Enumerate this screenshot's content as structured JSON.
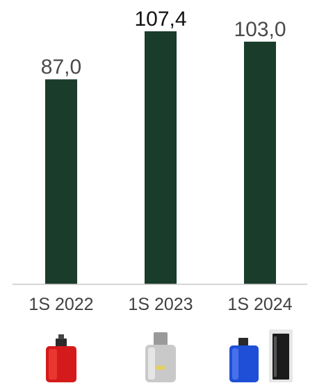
{
  "chart_data": {
    "type": "bar",
    "categories": [
      "1S 2022",
      "1S 2023",
      "1S 2024"
    ],
    "values": [
      87.0,
      107.4,
      103.0
    ],
    "value_labels": [
      "87,0",
      "107,4",
      "103,0"
    ],
    "title": "",
    "xlabel": "",
    "ylabel": "",
    "ylim": [
      0,
      108
    ],
    "grid": false,
    "legend": "none",
    "colors": {
      "bar": "#1a3c2a",
      "baseline": "#c8c8c8"
    }
  },
  "product_images": [
    {
      "icon": "red-perfume-bottle-icon",
      "colors": {
        "bottle": "#d41a1a",
        "cap": "#2b2b2b"
      }
    },
    {
      "icon": "silver-perfume-bottle-icon",
      "colors": {
        "bottle": "#c9c9c9",
        "cap": "#9a9a9a"
      }
    },
    {
      "icon": "blue-and-black-perfume-bottles-icon",
      "colors": {
        "bottle": "#1f4fd6",
        "second": "#1b1b1b"
      }
    }
  ]
}
